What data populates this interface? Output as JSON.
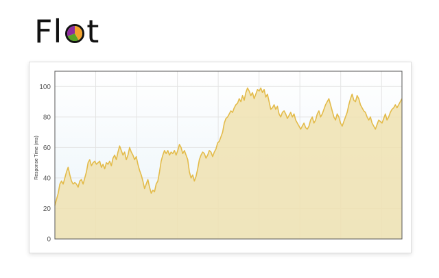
{
  "header": {
    "logo_prefix": "Fl",
    "logo_suffix": "t",
    "logo_colors": [
      "#f4a32c",
      "#5aa426",
      "#8e2ba0"
    ]
  },
  "chart_data": {
    "type": "area",
    "title": "",
    "xlabel": "",
    "ylabel": "Response Time (ms)",
    "ylim": [
      0,
      110
    ],
    "yticks": [
      0,
      20,
      40,
      60,
      80,
      100
    ],
    "x_intervals": 8.5,
    "grid": true,
    "line_color": "#e3bb4a",
    "fill_color": "#f0e2b0",
    "plot_background_top": "#ffffff",
    "plot_background_bottom": "#eaf4fa",
    "grid_color": "#e4e4e4",
    "series": [
      {
        "values": [
          22,
          26,
          30,
          36,
          38,
          36,
          40,
          44,
          47,
          42,
          38,
          36,
          37,
          36,
          34,
          38,
          39,
          36,
          40,
          44,
          50,
          52,
          48,
          50,
          51,
          49,
          50,
          51,
          47,
          49,
          46,
          50,
          49,
          51,
          48,
          53,
          55,
          52,
          57,
          61,
          58,
          55,
          57,
          52,
          55,
          60,
          57,
          55,
          52,
          54,
          49,
          45,
          42,
          38,
          33,
          36,
          39,
          34,
          30,
          32,
          31,
          36,
          38,
          44,
          51,
          55,
          58,
          56,
          58,
          55,
          57,
          56,
          58,
          55,
          58,
          62,
          60,
          56,
          58,
          55,
          52,
          44,
          40,
          42,
          38,
          41,
          46,
          52,
          55,
          57,
          56,
          53,
          55,
          58,
          57,
          54,
          57,
          59,
          63,
          64,
          67,
          70,
          76,
          79,
          80,
          82,
          84,
          83,
          86,
          88,
          89,
          92,
          90,
          94,
          91,
          96,
          99,
          97,
          94,
          96,
          92,
          95,
          98,
          97,
          99,
          96,
          98,
          93,
          95,
          90,
          85,
          86,
          88,
          85,
          87,
          82,
          80,
          83,
          84,
          82,
          79,
          81,
          83,
          80,
          82,
          78,
          76,
          74,
          72,
          74,
          76,
          73,
          72,
          74,
          78,
          80,
          76,
          78,
          82,
          84,
          80,
          82,
          85,
          88,
          90,
          92,
          88,
          84,
          80,
          78,
          82,
          80,
          76,
          74,
          77,
          80,
          83,
          88,
          92,
          95,
          91,
          90,
          94,
          92,
          88,
          86,
          84,
          83,
          80,
          78,
          80,
          76,
          74,
          72,
          75,
          78,
          77,
          76,
          79,
          82,
          78,
          80,
          83,
          85,
          86,
          88,
          86,
          88,
          90,
          92
        ]
      }
    ]
  }
}
